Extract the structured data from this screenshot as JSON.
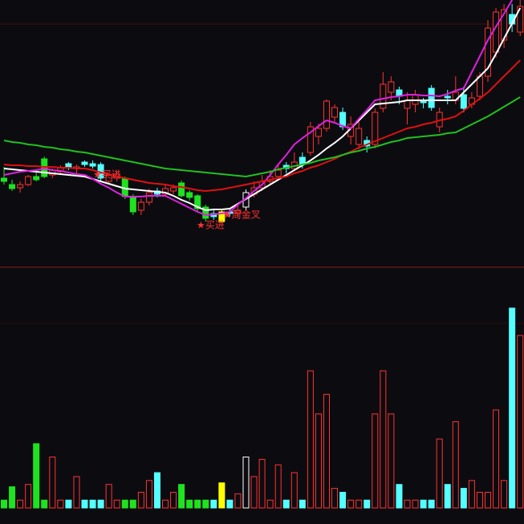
{
  "chart_data": {
    "type": "candlestick",
    "open": [
      108,
      100,
      96,
      100,
      110,
      132,
      112,
      116,
      126,
      120,
      128,
      126,
      125,
      104,
      108,
      108,
      85,
      68,
      78,
      92,
      88,
      92,
      102,
      90,
      86,
      72,
      64,
      66,
      66,
      64,
      72,
      88,
      96,
      104,
      110,
      124,
      120,
      134,
      140,
      160,
      170,
      184,
      190,
      160,
      150,
      155,
      150,
      195,
      215,
      218,
      195,
      200,
      205,
      220,
      172,
      210,
      205,
      212,
      200,
      210,
      235,
      265,
      280,
      312,
      290
    ],
    "high": [
      122,
      106,
      104,
      112,
      118,
      135,
      120,
      124,
      128,
      125,
      130,
      130,
      128,
      115,
      116,
      110,
      88,
      82,
      95,
      96,
      100,
      100,
      105,
      93,
      88,
      75,
      68,
      68,
      70,
      74,
      94,
      104,
      112,
      118,
      124,
      128,
      140,
      140,
      178,
      176,
      206,
      200,
      196,
      185,
      178,
      160,
      195,
      240,
      235,
      222,
      215,
      218,
      208,
      224,
      196,
      218,
      235,
      222,
      215,
      240,
      305,
      320,
      325,
      325,
      330
    ],
    "low": [
      100,
      92,
      90,
      98,
      104,
      108,
      108,
      112,
      118,
      112,
      122,
      120,
      105,
      100,
      104,
      82,
      62,
      62,
      74,
      84,
      85,
      88,
      84,
      80,
      66,
      54,
      56,
      52,
      60,
      60,
      68,
      84,
      92,
      100,
      106,
      114,
      118,
      120,
      136,
      150,
      166,
      176,
      168,
      150,
      144,
      140,
      145,
      190,
      205,
      200,
      175,
      190,
      195,
      192,
      165,
      200,
      200,
      190,
      195,
      205,
      228,
      258,
      270,
      290,
      285
    ],
    "close": [
      104,
      95,
      100,
      110,
      106,
      110,
      118,
      121,
      121,
      122,
      125,
      123,
      108,
      112,
      113,
      85,
      66,
      78,
      90,
      88,
      95,
      96,
      86,
      84,
      70,
      58,
      60,
      54,
      64,
      68,
      90,
      96,
      104,
      110,
      118,
      120,
      128,
      126,
      172,
      170,
      204,
      196,
      172,
      175,
      170,
      148,
      190,
      225,
      228,
      210,
      205,
      212,
      202,
      196,
      190,
      208,
      215,
      195,
      208,
      235,
      295,
      315,
      318,
      300,
      322
    ],
    "colors": [
      "#1ee31e",
      "#1ee31e",
      "#ff3232",
      "#ff3232",
      "#1ee31e",
      "#1ee31e",
      "#ff3232",
      "#ff3232",
      "#54ffff",
      "#ff3232",
      "#54ffff",
      "#54ffff",
      "#54ffff",
      "#ff3232",
      "#ff3232",
      "#1ee31e",
      "#1ee31e",
      "#ff3232",
      "#ff3232",
      "#54ffff",
      "#ff3232",
      "#ff3232",
      "#1ee31e",
      "#1ee31e",
      "#1ee31e",
      "#1ee31e",
      "#54ffff",
      "#ffff00",
      "#54ffff",
      "#ff3232",
      "#ffffff",
      "#ff3232",
      "#ff3232",
      "#ff3232",
      "#ff3232",
      "#54ffff",
      "#ff3232",
      "#54ffff",
      "#ff3232",
      "#ff3232",
      "#ff3232",
      "#ff3232",
      "#54ffff",
      "#ff3232",
      "#ff3232",
      "#54ffff",
      "#ff3232",
      "#ff3232",
      "#ff3232",
      "#54ffff",
      "#ff3232",
      "#ff3232",
      "#54ffff",
      "#54ffff",
      "#ff3232",
      "#54ffff",
      "#ff3232",
      "#54ffff",
      "#ff3232",
      "#ff3232",
      "#ff3232",
      "#ff3232",
      "#ff3232",
      "#54ffff",
      "#ff3232"
    ],
    "volume": [
      10,
      27,
      10,
      30,
      82,
      10,
      65,
      10,
      10,
      40,
      10,
      10,
      10,
      30,
      10,
      10,
      10,
      20,
      35,
      45,
      10,
      20,
      30,
      10,
      10,
      10,
      10,
      32,
      10,
      18,
      65,
      40,
      62,
      10,
      55,
      10,
      45,
      10,
      175,
      120,
      145,
      25,
      20,
      10,
      10,
      10,
      120,
      175,
      120,
      30,
      10,
      10,
      10,
      10,
      88,
      30,
      110,
      25,
      35,
      20,
      20,
      125,
      35,
      255,
      220
    ],
    "series": [
      {
        "color": "#ffffff",
        "values": [
          120,
          119,
          118,
          117,
          116,
          115,
          114,
          113,
          112,
          111,
          110,
          107,
          104,
          101,
          98,
          95,
          94,
          93,
          92,
          91,
          90,
          86,
          81,
          77,
          72,
          68,
          69,
          69,
          70,
          76,
          82,
          88,
          94,
          100,
          106,
          112,
          118,
          124,
          130,
          137,
          145,
          152,
          160,
          170,
          180,
          190,
          200,
          201,
          202,
          203,
          205,
          205,
          205,
          205,
          205,
          205,
          205,
          215,
          225,
          235,
          245,
          263,
          282,
          301,
          320
        ]
      },
      {
        "color": "#e020e0",
        "values": [
          112,
          114,
          116,
          117,
          118,
          120,
          118,
          117,
          115,
          113,
          112,
          107,
          101,
          96,
          90,
          85,
          85,
          85,
          86,
          86,
          86,
          81,
          76,
          71,
          66,
          62,
          63,
          64,
          66,
          75,
          83,
          92,
          100,
          112,
          125,
          137,
          150,
          158,
          165,
          173,
          180,
          177,
          173,
          170,
          182,
          193,
          205,
          207,
          209,
          210,
          212,
          212,
          211,
          211,
          210,
          213,
          217,
          220,
          240,
          260,
          280,
          297,
          313,
          330,
          null
        ]
      },
      {
        "color": "#e01010",
        "values": [
          125,
          124,
          124,
          123,
          123,
          122,
          122,
          121,
          121,
          120,
          120,
          118,
          115,
          113,
          110,
          108,
          106,
          104,
          102,
          101,
          100,
          98,
          97,
          95,
          93,
          92,
          93,
          94,
          96,
          98,
          100,
          102,
          104,
          106,
          108,
          110,
          114,
          117,
          121,
          124,
          128,
          132,
          137,
          141,
          146,
          150,
          154,
          158,
          162,
          166,
          170,
          172,
          175,
          177,
          180,
          182,
          185,
          192,
          200,
          207,
          215,
          225,
          235,
          245,
          255
        ]
      },
      {
        "color": "#20c020",
        "values": [
          155,
          153,
          152,
          150,
          149,
          147,
          146,
          144,
          143,
          141,
          140,
          138,
          136,
          134,
          132,
          130,
          128,
          126,
          124,
          122,
          120,
          119,
          118,
          117,
          116,
          115,
          114,
          113,
          112,
          111,
          110,
          112,
          114,
          116,
          119,
          121,
          123,
          125,
          127,
          130,
          132,
          134,
          137,
          140,
          142,
          145,
          147,
          150,
          153,
          155,
          158,
          159,
          160,
          161,
          162,
          164,
          165,
          170,
          175,
          180,
          185,
          191,
          197,
          203,
          209
        ]
      }
    ],
    "ylim": [
      0,
      330
    ],
    "volume_ylim": [
      0,
      300
    ],
    "annotations": [
      "★买进",
      "★周金叉",
      "★买进"
    ]
  }
}
